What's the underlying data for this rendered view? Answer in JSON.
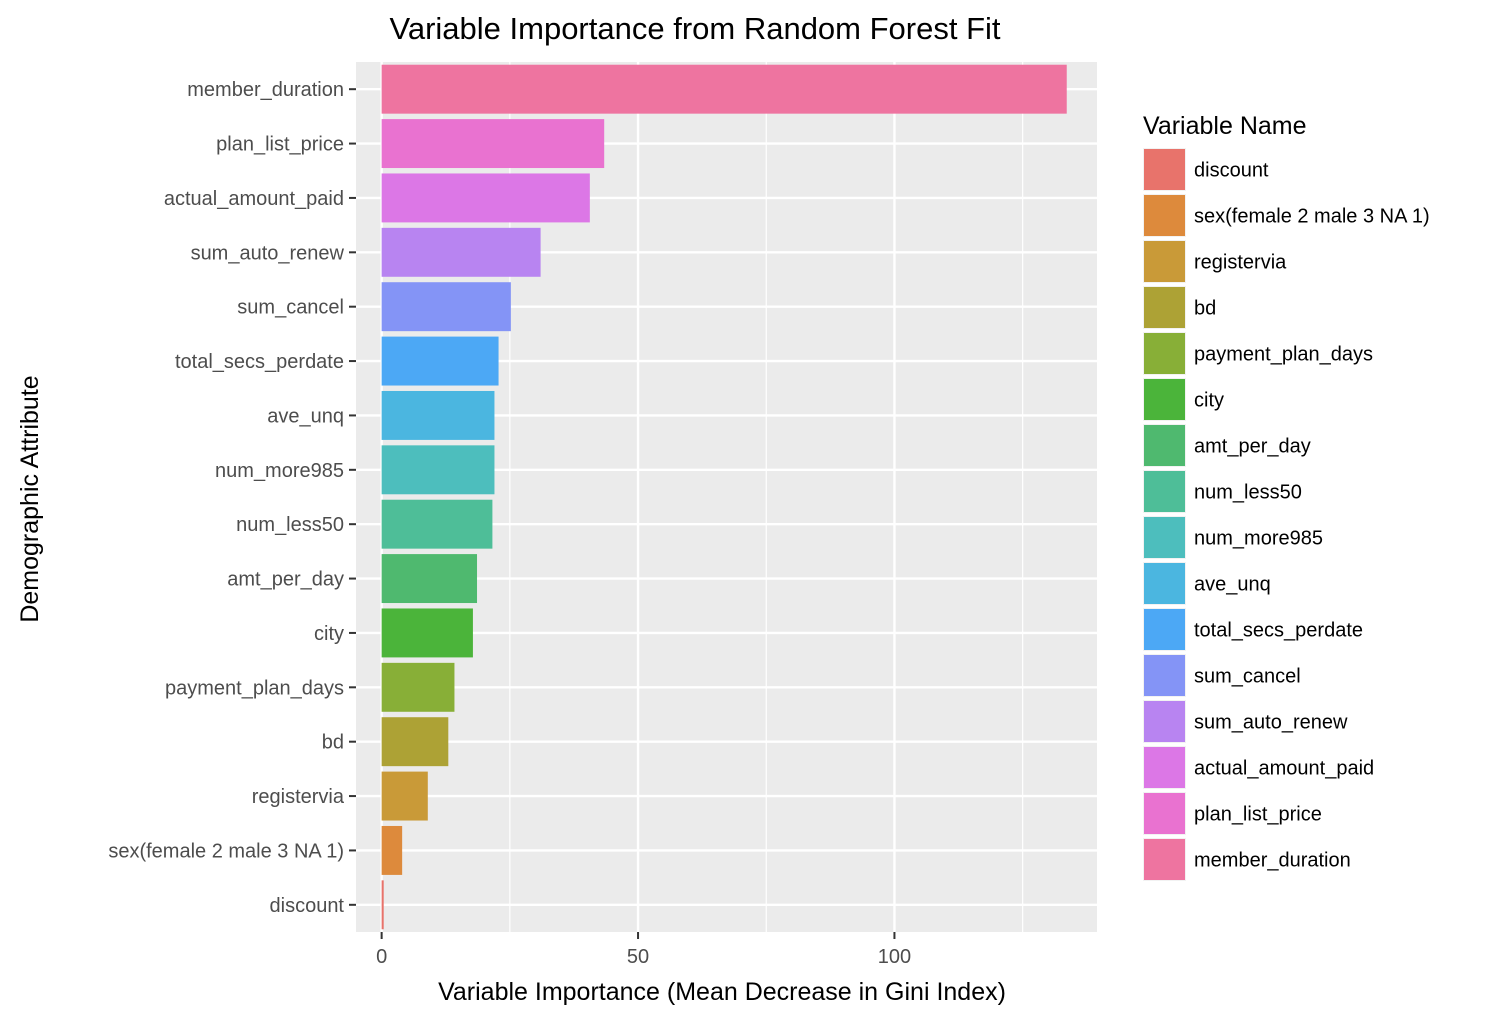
{
  "chart_data": {
    "type": "bar",
    "orientation": "horizontal",
    "title": "Variable Importance from Random Forest Fit",
    "xlabel": "Variable Importance (Mean Decrease in Gini Index)",
    "ylabel": "Demographic Attribute",
    "xlim": [
      -5,
      139.5
    ],
    "xticks": [
      0,
      50,
      100
    ],
    "grid": true,
    "legend_title": "Variable Name",
    "legend_position": "right",
    "categories": [
      "discount",
      "sex(female 2 male 3 NA 1)",
      "registervia",
      "bd",
      "payment_plan_days",
      "city",
      "amt_per_day",
      "num_less50",
      "num_more985",
      "ave_unq",
      "total_secs_perdate",
      "sum_cancel",
      "sum_auto_renew",
      "actual_amount_paid",
      "plan_list_price",
      "member_duration"
    ],
    "values": [
      0.4,
      4.0,
      9.0,
      13.0,
      14.2,
      17.8,
      18.6,
      21.6,
      22.0,
      22.0,
      22.8,
      25.2,
      31.0,
      40.6,
      43.4,
      133.6
    ],
    "colors": [
      "#F8766D",
      "#E18A00",
      "#BE9C00",
      "#8CAB00",
      "#24B700",
      "#00BE70",
      "#00C1AB",
      "#00BBDA",
      "#00ACFC",
      "#8B93FF",
      "#D575FE",
      "#F962DD",
      "#FF65AC",
      "#E76BF3",
      "#B983FF",
      "#FF6C91"
    ],
    "bar_colors": [
      "#E8736B",
      "#DD8A3C",
      "#C99A38",
      "#ADA235",
      "#88AF37",
      "#4BB43A",
      "#4FB96F",
      "#4EBE98",
      "#4DBEBD",
      "#4BB6E0",
      "#4CA8F5",
      "#8494F6",
      "#B884F1",
      "#DC77E6",
      "#E972D0",
      "#EE74A0"
    ],
    "panel_background": "#EBEBEB",
    "grid_color": "#FFFFFF"
  }
}
